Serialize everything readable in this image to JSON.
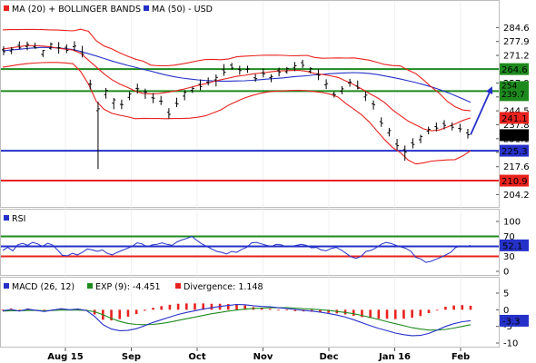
{
  "chart_data": [
    {
      "panel": "price",
      "type": "line",
      "legend": [
        {
          "label": "MA (20) + BOLLINGER BANDS",
          "color": "#e8221e"
        },
        {
          "label": "MA (50) - USD",
          "color": "#2531c8"
        }
      ],
      "ylim": [
        200,
        290
      ],
      "y_ticks": [
        "284.6",
        "277.9",
        "271.2",
        "264.6",
        "257.9",
        "251.2",
        "244.5",
        "237.8",
        "231.1",
        "224.5",
        "217.6",
        "210.9",
        "204.2"
      ],
      "x_ticks": [
        "Aug 15",
        "Sep",
        "Oct",
        "Nov",
        "Dec",
        "Jan 16",
        "Feb"
      ],
      "levels": [
        {
          "value": 264.6,
          "color": "#1e8a1e",
          "label": "264.6"
        },
        {
          "value": 254.0,
          "color": "#1e8a1e",
          "label": "254\n239.7"
        },
        {
          "value": 225.3,
          "color": "#2531c8",
          "label": "225.3"
        },
        {
          "value": 210.9,
          "color": "#e8221e",
          "label": "210.9"
        }
      ],
      "current_price": {
        "value": 232.8,
        "label": "232.8"
      },
      "ma20_label": {
        "value": 241.1,
        "label": "241.1"
      },
      "projection": {
        "from": 233.0,
        "to": 255.5
      },
      "colors": {
        "ma20": "#e8221e",
        "ma50": "#2531c8",
        "bars": "#000000"
      },
      "series": [
        {
          "name": "MA (50)",
          "values": [
            273.4,
            273.8,
            274.1,
            274.5,
            274.8,
            275.0,
            275.0,
            274.8,
            274.5,
            274.0,
            273.1,
            272.0,
            270.9,
            269.7,
            268.5,
            267.4,
            266.4,
            265.5,
            264.5,
            263.6,
            262.6,
            261.7,
            260.9,
            260.3,
            259.8,
            259.4,
            259.1,
            258.9,
            258.8,
            258.8,
            258.9,
            259.0,
            259.2,
            259.5,
            259.8,
            260.1,
            260.4,
            260.8,
            261.1,
            261.4,
            261.8,
            262.1,
            262.4,
            262.6,
            262.8,
            262.9,
            262.8,
            262.5,
            262.0,
            261.3,
            260.6,
            259.8,
            259.0,
            258.1,
            257.1,
            256.0,
            254.8,
            253.4,
            251.9,
            250.3,
            248.6
          ]
        },
        {
          "name": "MA (20)",
          "values": [
            274.3,
            274.8,
            275.3,
            275.9,
            275.9,
            275.7,
            275.4,
            274.7,
            274.2,
            273.8,
            272.2,
            268.9,
            265.6,
            262.3,
            259.5,
            257.4,
            255.8,
            254.0,
            252.9,
            252.7,
            252.8,
            253.4,
            254.0,
            254.8,
            255.7,
            256.7,
            257.6,
            258.6,
            259.5,
            260.3,
            261.1,
            261.6,
            262.2,
            262.7,
            263.1,
            263.6,
            263.8,
            263.9,
            264.0,
            263.5,
            262.5,
            262.0,
            261.4,
            260.6,
            258.9,
            257.2,
            255.1,
            252.9,
            250.9,
            248.4,
            244.9,
            242.2,
            239.6,
            237.7,
            235.8,
            234.9,
            235.3,
            236.7,
            238.2,
            239.9,
            241.1
          ]
        },
        {
          "name": "Bollinger upper",
          "values": [
            283.5,
            283.6,
            283.6,
            283.7,
            283.7,
            283.6,
            283.5,
            283.4,
            283.2,
            283.0,
            283.8,
            282.8,
            278.2,
            275.7,
            274.3,
            272.4,
            270.8,
            269.4,
            268.4,
            266.5,
            266.2,
            266.2,
            266.5,
            267.1,
            267.8,
            268.6,
            269.2,
            269.3,
            269.1,
            269.5,
            270.5,
            270.8,
            271.0,
            271.2,
            271.3,
            271.3,
            271.2,
            271.0,
            271.1,
            271.2,
            270.2,
            269.8,
            269.9,
            270.0,
            269.9,
            270.0,
            269.5,
            268.9,
            267.9,
            266.8,
            266.3,
            266.1,
            264.1,
            262.4,
            259.3,
            255.9,
            252.9,
            249.1,
            246.5,
            244.9,
            244.5
          ]
        },
        {
          "name": "Bollinger lower",
          "values": [
            265.5,
            266.1,
            266.7,
            267.2,
            267.5,
            267.7,
            267.8,
            267.8,
            267.6,
            267.2,
            263.4,
            257.4,
            249.1,
            245.2,
            243.3,
            242.4,
            241.7,
            240.7,
            240.9,
            240.8,
            240.8,
            240.7,
            240.8,
            240.8,
            241.0,
            241.4,
            242.1,
            243.5,
            245.0,
            247.3,
            249.0,
            250.7,
            251.9,
            252.9,
            253.6,
            254.0,
            254.1,
            254.3,
            254.4,
            254.2,
            253.8,
            253.3,
            252.5,
            251.1,
            248.0,
            245.4,
            242.7,
            239.2,
            234.8,
            230.5,
            226.8,
            224.4,
            220.8,
            218.9,
            219.5,
            220.3,
            220.6,
            220.9,
            221.0,
            222.8,
            225.3
          ]
        }
      ],
      "ohlc": [
        [
          273.9,
          275.6,
          271.3,
          273.0
        ],
        [
          273.3,
          275.1,
          271.8,
          274.2
        ],
        [
          276.1,
          277.9,
          274.2,
          274.8
        ],
        [
          275.5,
          277.8,
          273.7,
          276.5
        ],
        [
          275.4,
          277.3,
          274.4,
          274.8
        ],
        [
          271.6,
          273.8,
          270.4,
          273.6
        ],
        [
          274.6,
          277.4,
          273.9,
          276.6
        ],
        [
          274.8,
          277.6,
          272.1,
          274.9
        ],
        [
          275.1,
          276.5,
          272.3,
          273.6
        ],
        [
          275.4,
          278.0,
          273.2,
          275.7
        ],
        [
          272.9,
          275.8,
          270.2,
          271.8
        ],
        [
          257.4,
          259.5,
          254.8,
          257.3
        ],
        [
          244.6,
          248.9,
          216.5,
          245.5
        ],
        [
          252.3,
          255.5,
          250.4,
          254.4
        ],
        [
          248.2,
          250.7,
          245.3,
          249.8
        ],
        [
          247.6,
          249.9,
          245.3,
          247.5
        ],
        [
          251.0,
          253.7,
          249.6,
          252.6
        ],
        [
          255.3,
          257.6,
          252.8,
          255.1
        ],
        [
          253.7,
          255.2,
          250.3,
          253.5
        ],
        [
          250.8,
          253.0,
          248.2,
          250.6
        ],
        [
          249.2,
          251.7,
          247.3,
          249.1
        ],
        [
          243.8,
          245.8,
          240.8,
          242.8
        ],
        [
          248.2,
          250.8,
          246.3,
          247.9
        ],
        [
          251.6,
          254.5,
          249.6,
          253.4
        ],
        [
          254.4,
          256.1,
          253.1,
          255.3
        ],
        [
          257.3,
          259.6,
          254.4,
          256.2
        ],
        [
          258.3,
          260.6,
          256.7,
          258.1
        ],
        [
          259.4,
          262.0,
          256.3,
          260.6
        ],
        [
          264.3,
          267.0,
          261.4,
          263.1
        ],
        [
          266.5,
          267.6,
          264.4,
          265.1
        ],
        [
          264.5,
          266.2,
          261.9,
          263.9
        ],
        [
          264.4,
          266.2,
          262.8,
          264.7
        ],
        [
          260.4,
          262.2,
          258.5,
          260.0
        ],
        [
          262.8,
          264.9,
          260.6,
          262.3
        ],
        [
          260.5,
          262.1,
          258.3,
          260.9
        ],
        [
          263.9,
          265.3,
          261.1,
          263.1
        ],
        [
          263.3,
          265.6,
          262.4,
          264.9
        ],
        [
          265.4,
          268.0,
          263.6,
          266.2
        ],
        [
          267.7,
          269.1,
          265.1,
          266.4
        ],
        [
          263.6,
          265.6,
          262.5,
          264.9
        ],
        [
          262.2,
          264.7,
          259.3,
          261.6
        ],
        [
          257.0,
          259.7,
          255.0,
          257.6
        ],
        [
          252.7,
          253.8,
          250.9,
          252.3
        ],
        [
          253.9,
          256.4,
          252.5,
          255.1
        ],
        [
          257.9,
          259.9,
          256.1,
          258.4
        ],
        [
          256.4,
          259.1,
          254.8,
          255.4
        ],
        [
          251.2,
          253.9,
          249.2,
          252.1
        ],
        [
          247.9,
          249.5,
          245.1,
          247.5
        ],
        [
          239.3,
          241.4,
          236.8,
          238.5
        ],
        [
          233.9,
          236.3,
          232.2,
          235.0
        ],
        [
          228.5,
          231.0,
          225.6,
          227.7
        ],
        [
          225.8,
          227.8,
          220.5,
          224.6
        ],
        [
          229.1,
          231.3,
          226.4,
          228.3
        ],
        [
          230.6,
          233.0,
          228.9,
          232.1
        ],
        [
          234.7,
          236.9,
          233.2,
          235.6
        ],
        [
          236.9,
          238.9,
          234.6,
          236.2
        ],
        [
          238.4,
          240.0,
          235.6,
          237.5
        ],
        [
          237.4,
          239.0,
          235.1,
          236.6
        ],
        [
          236.0,
          238.3,
          234.2,
          235.8
        ],
        [
          233.9,
          235.8,
          231.2,
          233.0
        ]
      ]
    },
    {
      "panel": "rsi",
      "type": "line",
      "legend": [
        {
          "label": "RSI",
          "color": "#2531c8"
        }
      ],
      "ylim": [
        0,
        100
      ],
      "y_ticks": [
        "100",
        "70",
        "50",
        "30",
        "0"
      ],
      "levels": [
        {
          "value": 70,
          "color": "#1e8a1e"
        },
        {
          "value": 50,
          "color": "#2531c8"
        },
        {
          "value": 30,
          "color": "#e8221e"
        }
      ],
      "current": {
        "value": 52.1,
        "label": "52.1"
      },
      "series": [
        {
          "name": "RSI",
          "values": [
            42,
            48,
            41,
            53,
            56,
            52,
            58,
            55,
            50,
            56,
            53,
            43,
            32,
            31,
            36,
            33,
            38,
            45,
            43,
            40,
            43,
            36,
            33,
            38,
            42,
            46,
            50,
            57,
            55,
            49,
            53,
            54,
            57,
            54,
            52,
            59,
            63,
            66,
            70,
            62,
            55,
            50,
            45,
            40,
            38,
            35,
            40,
            38,
            44,
            48,
            57,
            58,
            55,
            52,
            50,
            54,
            53,
            49,
            50,
            52,
            54,
            52,
            47,
            48,
            43,
            41,
            46,
            48,
            43,
            36,
            29,
            26,
            30,
            40,
            42,
            47,
            54,
            58,
            56,
            52,
            49,
            46,
            40,
            28,
            25,
            18,
            20,
            24,
            28,
            33,
            38,
            48,
            50,
            49,
            52
          ]
        }
      ]
    },
    {
      "panel": "macd",
      "type": "line",
      "legend": [
        {
          "label": "MACD (26, 12)",
          "color": "#2531c8"
        },
        {
          "label": "EXP (9): -4.451",
          "color": "#1e8a1e"
        },
        {
          "label": "Divergence: 1.148",
          "color": "#e8221e"
        }
      ],
      "ylim": [
        -10,
        5
      ],
      "y_ticks": [
        "5",
        "0",
        "-5",
        "-10"
      ],
      "current": {
        "value": -3.3,
        "label": "-3.3"
      },
      "series": [
        {
          "name": "MACD",
          "values": [
            -0.3,
            0.1,
            -0.4,
            0.2,
            -0.2,
            -0.5,
            -0.1,
            0.3,
            0.0,
            0.2,
            -0.2,
            -2.0,
            -4.5,
            -5.8,
            -6.3,
            -6.2,
            -5.7,
            -4.8,
            -3.8,
            -3.0,
            -2.2,
            -1.4,
            -0.8,
            -0.3,
            0.2,
            0.6,
            1.0,
            1.3,
            1.6,
            1.5,
            1.2,
            1.0,
            0.9,
            0.6,
            0.4,
            0.1,
            -0.2,
            -0.4,
            -0.7,
            -1.1,
            -1.6,
            -2.2,
            -3.0,
            -3.9,
            -4.8,
            -5.6,
            -6.3,
            -7.0,
            -7.5,
            -7.8,
            -7.7,
            -7.1,
            -6.1,
            -5.0,
            -4.2,
            -3.6,
            -3.3
          ]
        },
        {
          "name": "EXP (9)",
          "values": [
            -0.4,
            -0.3,
            -0.3,
            -0.2,
            -0.2,
            -0.3,
            -0.2,
            -0.1,
            -0.1,
            -0.1,
            -0.2,
            -0.6,
            -1.5,
            -2.6,
            -3.5,
            -4.1,
            -4.4,
            -4.5,
            -4.4,
            -4.1,
            -3.7,
            -3.2,
            -2.7,
            -2.2,
            -1.7,
            -1.2,
            -0.8,
            -0.4,
            -0.1,
            0.2,
            0.4,
            0.5,
            0.6,
            0.6,
            0.6,
            0.5,
            0.3,
            0.2,
            0.0,
            -0.2,
            -0.5,
            -0.8,
            -1.2,
            -1.7,
            -2.3,
            -2.9,
            -3.6,
            -4.2,
            -4.8,
            -5.4,
            -5.8,
            -6.1,
            -6.1,
            -5.9,
            -5.5,
            -5.0,
            -4.5
          ]
        },
        {
          "name": "Divergence",
          "values": [
            0.1,
            0.4,
            -0.1,
            0.4,
            0.0,
            -0.2,
            0.1,
            0.4,
            0.1,
            0.3,
            0.0,
            -1.4,
            -3.0,
            -3.2,
            -2.8,
            -2.1,
            -1.3,
            -0.3,
            0.6,
            1.1,
            1.5,
            1.8,
            1.9,
            1.9,
            1.9,
            1.8,
            1.8,
            1.7,
            1.7,
            1.3,
            0.8,
            0.5,
            0.3,
            0.0,
            -0.2,
            -0.4,
            -0.5,
            -0.6,
            -0.7,
            -0.9,
            -1.1,
            -1.4,
            -1.8,
            -2.2,
            -2.5,
            -2.7,
            -2.7,
            -2.8,
            -2.7,
            -2.4,
            -1.9,
            -1.0,
            0.0,
            0.9,
            1.3,
            1.4,
            1.2
          ]
        }
      ]
    }
  ]
}
